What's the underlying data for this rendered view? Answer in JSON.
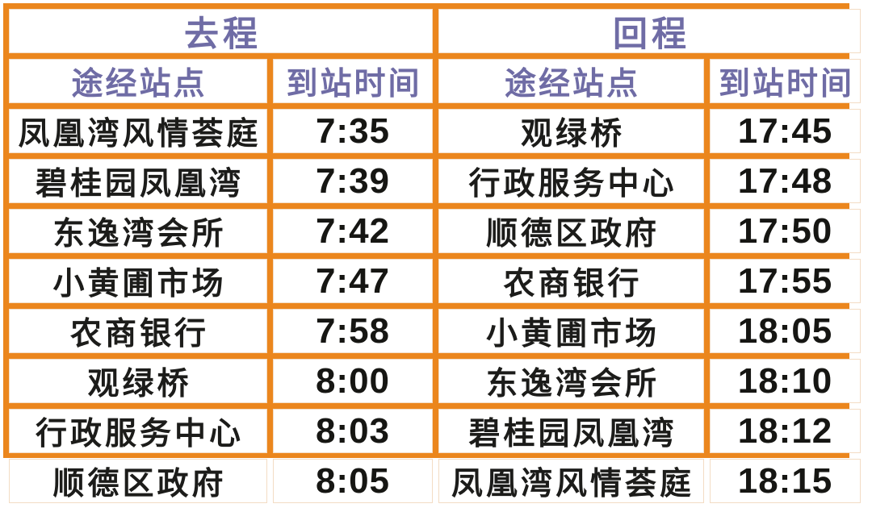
{
  "colors": {
    "grid_orange": "#EB861D",
    "header_purple": "#6F6CA5",
    "text_black": "#1C1C1A",
    "cell_background": "#FFFFFF"
  },
  "timetable": {
    "outbound": {
      "title": "去程",
      "col_station": "途经站点",
      "col_time": "到站时间",
      "rows": [
        {
          "station": "凤凰湾风情荟庭",
          "time": "7:35"
        },
        {
          "station": "碧桂园凤凰湾",
          "time": "7:39"
        },
        {
          "station": "东逸湾会所",
          "time": "7:42"
        },
        {
          "station": "小黄圃市场",
          "time": "7:47"
        },
        {
          "station": "农商银行",
          "time": "7:58"
        },
        {
          "station": "观绿桥",
          "time": "8:00"
        },
        {
          "station": "行政服务中心",
          "time": "8:03"
        },
        {
          "station": "顺德区政府",
          "time": "8:05"
        }
      ]
    },
    "inbound": {
      "title": "回程",
      "col_station": "途经站点",
      "col_time": "到站时间",
      "rows": [
        {
          "station": "观绿桥",
          "time": "17:45"
        },
        {
          "station": "行政服务中心",
          "time": "17:48"
        },
        {
          "station": "顺德区政府",
          "time": "17:50"
        },
        {
          "station": "农商银行",
          "time": "17:55"
        },
        {
          "station": "小黄圃市场",
          "time": "18:05"
        },
        {
          "station": "东逸湾会所",
          "time": "18:10"
        },
        {
          "station": "碧桂园凤凰湾",
          "time": "18:12"
        },
        {
          "station": "凤凰湾风情荟庭",
          "time": "18:15"
        }
      ]
    }
  }
}
